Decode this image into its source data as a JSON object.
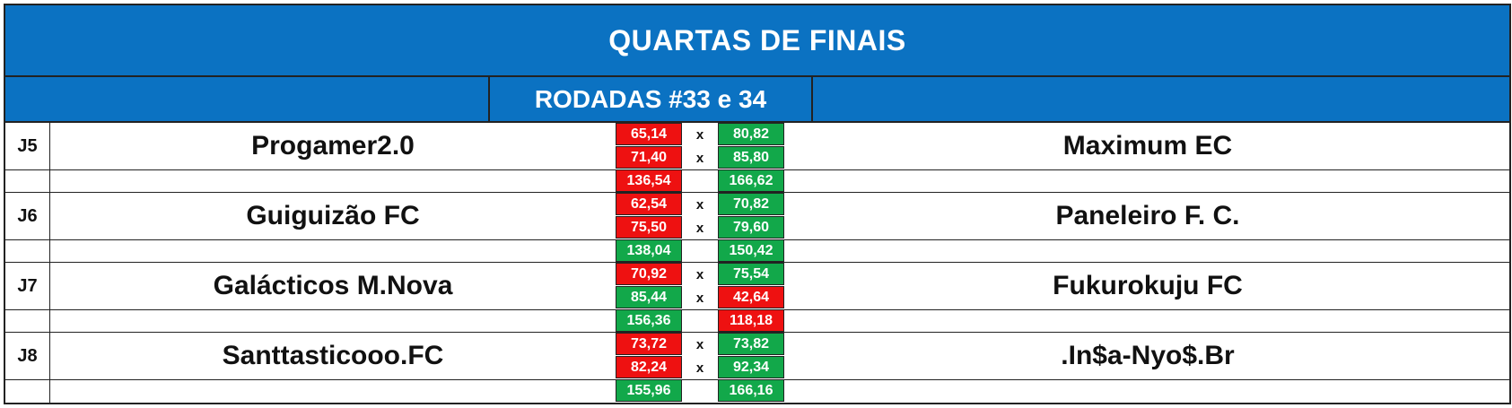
{
  "header": {
    "title": "QUARTAS DE FINAIS",
    "subtitle": "RODADAS #33 e 34"
  },
  "colors": {
    "header_bg": "#0b72c2",
    "win": "#12a84a",
    "loss": "#ee1111"
  },
  "vs_label": "x",
  "matches": [
    {
      "code": "J5",
      "home": "Progamer2.0",
      "away": "Maximum EC",
      "rounds": [
        {
          "home": "65,14",
          "home_status": "red",
          "away": "80,82",
          "away_status": "green"
        },
        {
          "home": "71,40",
          "home_status": "red",
          "away": "85,80",
          "away_status": "green"
        }
      ],
      "total": {
        "home": "136,54",
        "home_status": "red",
        "away": "166,62",
        "away_status": "green"
      }
    },
    {
      "code": "J6",
      "home": "Guiguizão FC",
      "away": "Paneleiro F. C.",
      "rounds": [
        {
          "home": "62,54",
          "home_status": "red",
          "away": "70,82",
          "away_status": "green"
        },
        {
          "home": "75,50",
          "home_status": "red",
          "away": "79,60",
          "away_status": "green"
        }
      ],
      "total": {
        "home": "138,04",
        "home_status": "green",
        "away": "150,42",
        "away_status": "green"
      }
    },
    {
      "code": "J7",
      "home": "Galácticos M.Nova",
      "away": "Fukurokuju FC",
      "rounds": [
        {
          "home": "70,92",
          "home_status": "red",
          "away": "75,54",
          "away_status": "green"
        },
        {
          "home": "85,44",
          "home_status": "green",
          "away": "42,64",
          "away_status": "red"
        }
      ],
      "total": {
        "home": "156,36",
        "home_status": "green",
        "away": "118,18",
        "away_status": "red"
      }
    },
    {
      "code": "J8",
      "home": "Santtasticooo.FC",
      "away": ".In$a-Nyo$.Br",
      "rounds": [
        {
          "home": "73,72",
          "home_status": "red",
          "away": "73,82",
          "away_status": "green"
        },
        {
          "home": "82,24",
          "home_status": "red",
          "away": "92,34",
          "away_status": "green"
        }
      ],
      "total": {
        "home": "155,96",
        "home_status": "green",
        "away": "166,16",
        "away_status": "green"
      }
    }
  ]
}
